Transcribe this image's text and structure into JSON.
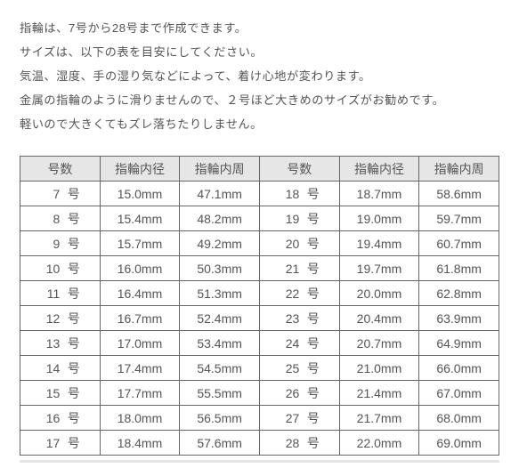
{
  "intro_lines": [
    "指輪は、7号から28号まで作成できます。",
    "サイズは、以下の表を目安にしてください。",
    "気温、湿度、手の湿り気などによって、着け心地が変わります。",
    "金属の指輪のように滑りませんので、２号ほど大きめのサイズがお勧めです。",
    "軽いので大きくてもズレ落ちたりしません。"
  ],
  "size_table": {
    "type": "table",
    "columns_left": [
      "号数",
      "指輪内径",
      "指輪内周"
    ],
    "columns_right": [
      "号数",
      "指輪内径",
      "指輪内周"
    ],
    "size_unit": "号",
    "rows": [
      {
        "l_size": "7",
        "l_id": "15.0mm",
        "l_ic": "47.1mm",
        "r_size": "18",
        "r_id": "18.7mm",
        "r_ic": "58.6mm"
      },
      {
        "l_size": "8",
        "l_id": "15.4mm",
        "l_ic": "48.2mm",
        "r_size": "19",
        "r_id": "19.0mm",
        "r_ic": "59.7mm"
      },
      {
        "l_size": "9",
        "l_id": "15.7mm",
        "l_ic": "49.2mm",
        "r_size": "20",
        "r_id": "19.4mm",
        "r_ic": "60.7mm"
      },
      {
        "l_size": "10",
        "l_id": "16.0mm",
        "l_ic": "50.3mm",
        "r_size": "21",
        "r_id": "19.7mm",
        "r_ic": "61.8mm"
      },
      {
        "l_size": "11",
        "l_id": "16.4mm",
        "l_ic": "51.3mm",
        "r_size": "22",
        "r_id": "20.0mm",
        "r_ic": "62.8mm"
      },
      {
        "l_size": "12",
        "l_id": "16.7mm",
        "l_ic": "52.4mm",
        "r_size": "23",
        "r_id": "20.4mm",
        "r_ic": "63.9mm"
      },
      {
        "l_size": "13",
        "l_id": "17.0mm",
        "l_ic": "53.4mm",
        "r_size": "24",
        "r_id": "20.7mm",
        "r_ic": "64.9mm"
      },
      {
        "l_size": "14",
        "l_id": "17.4mm",
        "l_ic": "54.5mm",
        "r_size": "25",
        "r_id": "21.0mm",
        "r_ic": "66.0mm"
      },
      {
        "l_size": "15",
        "l_id": "17.7mm",
        "l_ic": "55.5mm",
        "r_size": "26",
        "r_id": "21.4mm",
        "r_ic": "67.0mm"
      },
      {
        "l_size": "16",
        "l_id": "18.0mm",
        "l_ic": "56.5mm",
        "r_size": "27",
        "r_id": "21.7mm",
        "r_ic": "68.0mm"
      },
      {
        "l_size": "17",
        "l_id": "18.4mm",
        "l_ic": "57.6mm",
        "r_size": "28",
        "r_id": "22.0mm",
        "r_ic": "69.0mm"
      }
    ],
    "header_bg": "#e6e6e6",
    "border_color": "#666666",
    "text_color": "#555555",
    "font_size_pt": 11
  }
}
